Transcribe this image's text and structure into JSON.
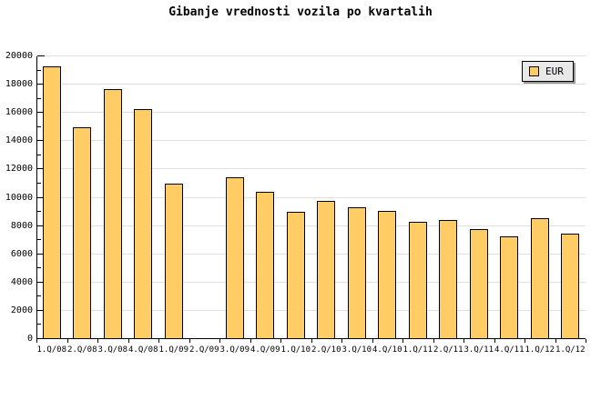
{
  "title": "Gibanje vrednosti vozila po kvartalih",
  "legend": {
    "label": "EUR",
    "swatch_color": "#ffcc66",
    "position": "top-right"
  },
  "chart_data": {
    "type": "bar",
    "title": "Gibanje vrednosti vozila po kvartalih",
    "categories": [
      "1.Q/08",
      "2.Q/08",
      "3.Q/08",
      "4.Q/08",
      "1.Q/09",
      "2.Q/09",
      "3.Q/09",
      "4.Q/09",
      "1.Q/10",
      "2.Q/10",
      "3.Q/10",
      "4.Q/10",
      "1.Q/11",
      "2.Q/11",
      "3.Q/11",
      "4.Q/11",
      "1.Q/12",
      "1.Q/12"
    ],
    "series": [
      {
        "name": "EUR",
        "values": [
          19300,
          15000,
          17700,
          16300,
          11000,
          0,
          11450,
          10450,
          9000,
          9800,
          9300,
          9050,
          8300,
          8400,
          7750,
          7250,
          8550,
          7450
        ]
      }
    ],
    "xlabel": "",
    "ylabel": "",
    "ylim": [
      0,
      20000
    ],
    "yticks": [
      0,
      2000,
      4000,
      6000,
      8000,
      10000,
      12000,
      14000,
      16000,
      18000,
      20000
    ],
    "minor_tick_step": 1000,
    "grid": "horizontal-major",
    "grid_color": "#e0e0e0",
    "bar_color": "#ffcc66",
    "bar_border_color": "#000000",
    "legend_position": "top-right",
    "missing_categories": [
      "2.Q/09"
    ]
  }
}
